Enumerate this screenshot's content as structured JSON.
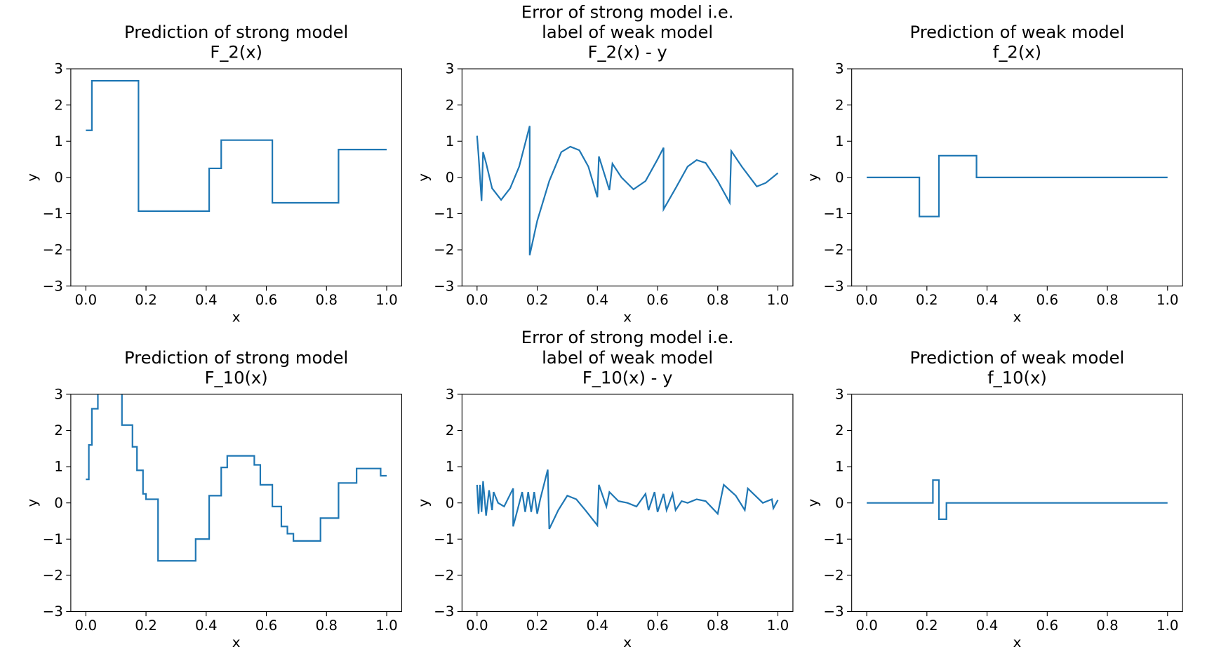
{
  "chart_data": [
    {
      "type": "line",
      "title": [
        "Prediction of strong model",
        "F_2(x)"
      ],
      "xlabel": "x",
      "ylabel": "y",
      "color": "#1f77b4",
      "xlim": [
        -0.05,
        1.05
      ],
      "ylim": [
        -3,
        3
      ],
      "xticks": [
        {
          "value": 0,
          "label": "0.0"
        },
        {
          "value": 0.2,
          "label": "0.2"
        },
        {
          "value": 0.4,
          "label": "0.4"
        },
        {
          "value": 0.6,
          "label": "0.6"
        },
        {
          "value": 0.8,
          "label": "0.8"
        },
        {
          "value": 1,
          "label": "1.0"
        }
      ],
      "yticks": [
        {
          "value": -3,
          "label": "−3"
        },
        {
          "value": -2,
          "label": "−2"
        },
        {
          "value": -1,
          "label": "−1"
        },
        0,
        1,
        2,
        3
      ],
      "x": [
        0,
        0.02,
        0.02,
        0.175,
        0.175,
        0.41,
        0.41,
        0.45,
        0.45,
        0.62,
        0.62,
        0.84,
        0.84,
        1.0
      ],
      "values": [
        1.3,
        1.3,
        2.67,
        2.67,
        -0.93,
        -0.93,
        0.25,
        0.25,
        1.03,
        1.03,
        -0.7,
        -0.7,
        0.77,
        0.77
      ]
    },
    {
      "type": "line",
      "title": [
        "Error of strong model i.e.",
        "label of weak model",
        "F_2(x) - y"
      ],
      "xlabel": "x",
      "ylabel": "y",
      "color": "#1f77b4",
      "xlim": [
        -0.05,
        1.05
      ],
      "ylim": [
        -3,
        3
      ],
      "xticks": [
        {
          "value": 0,
          "label": "0.0"
        },
        {
          "value": 0.2,
          "label": "0.2"
        },
        {
          "value": 0.4,
          "label": "0.4"
        },
        {
          "value": 0.6,
          "label": "0.6"
        },
        {
          "value": 0.8,
          "label": "0.8"
        },
        {
          "value": 1,
          "label": "1.0"
        }
      ],
      "yticks": [
        {
          "value": -3,
          "label": "−3"
        },
        {
          "value": -2,
          "label": "−2"
        },
        {
          "value": -1,
          "label": "−1"
        },
        0,
        1,
        2,
        3
      ],
      "x": [
        0,
        0.005,
        0.015,
        0.02,
        0.03,
        0.05,
        0.08,
        0.11,
        0.14,
        0.175,
        0.175,
        0.2,
        0.24,
        0.28,
        0.31,
        0.34,
        0.37,
        0.4,
        0.405,
        0.44,
        0.45,
        0.48,
        0.52,
        0.56,
        0.6,
        0.62,
        0.62,
        0.66,
        0.7,
        0.73,
        0.76,
        0.8,
        0.84,
        0.845,
        0.88,
        0.93,
        0.96,
        1.0
      ],
      "values": [
        1.15,
        0.6,
        -0.65,
        0.7,
        0.4,
        -0.3,
        -0.62,
        -0.3,
        0.3,
        1.42,
        -2.15,
        -1.2,
        -0.1,
        0.7,
        0.85,
        0.75,
        0.3,
        -0.55,
        0.58,
        -0.35,
        0.38,
        0.0,
        -0.33,
        -0.1,
        0.5,
        0.82,
        -0.88,
        -0.3,
        0.3,
        0.48,
        0.4,
        -0.1,
        -0.7,
        0.73,
        0.3,
        -0.25,
        -0.15,
        0.12
      ]
    },
    {
      "type": "line",
      "title": [
        "Prediction of weak model",
        "f_2(x)"
      ],
      "xlabel": "x",
      "ylabel": "y",
      "color": "#1f77b4",
      "xlim": [
        -0.05,
        1.05
      ],
      "ylim": [
        -3,
        3
      ],
      "xticks": [
        {
          "value": 0,
          "label": "0.0"
        },
        {
          "value": 0.2,
          "label": "0.2"
        },
        {
          "value": 0.4,
          "label": "0.4"
        },
        {
          "value": 0.6,
          "label": "0.6"
        },
        {
          "value": 0.8,
          "label": "0.8"
        },
        {
          "value": 1,
          "label": "1.0"
        }
      ],
      "yticks": [
        {
          "value": -3,
          "label": "−3"
        },
        {
          "value": -2,
          "label": "−2"
        },
        {
          "value": -1,
          "label": "−1"
        },
        0,
        1,
        2,
        3
      ],
      "x": [
        0,
        0.175,
        0.175,
        0.24,
        0.24,
        0.365,
        0.365,
        1.0
      ],
      "values": [
        0,
        0,
        -1.08,
        -1.08,
        0.6,
        0.6,
        0,
        0
      ]
    },
    {
      "type": "line",
      "title": [
        "Prediction of strong model",
        "F_10(x)"
      ],
      "xlabel": "x",
      "ylabel": "y",
      "color": "#1f77b4",
      "xlim": [
        -0.05,
        1.05
      ],
      "ylim": [
        -3,
        3
      ],
      "xticks": [
        {
          "value": 0,
          "label": "0.0"
        },
        {
          "value": 0.2,
          "label": "0.2"
        },
        {
          "value": 0.4,
          "label": "0.4"
        },
        {
          "value": 0.6,
          "label": "0.6"
        },
        {
          "value": 0.8,
          "label": "0.8"
        },
        {
          "value": 1,
          "label": "1.0"
        }
      ],
      "yticks": [
        {
          "value": -3,
          "label": "−3"
        },
        {
          "value": -2,
          "label": "−2"
        },
        {
          "value": -1,
          "label": "−1"
        },
        0,
        1,
        2,
        3
      ],
      "x": [
        0,
        0.01,
        0.01,
        0.02,
        0.02,
        0.04,
        0.04,
        0.12,
        0.12,
        0.155,
        0.155,
        0.17,
        0.17,
        0.19,
        0.19,
        0.2,
        0.2,
        0.24,
        0.24,
        0.365,
        0.365,
        0.41,
        0.41,
        0.45,
        0.45,
        0.47,
        0.47,
        0.56,
        0.56,
        0.58,
        0.58,
        0.62,
        0.62,
        0.65,
        0.65,
        0.67,
        0.67,
        0.69,
        0.69,
        0.78,
        0.78,
        0.84,
        0.84,
        0.9,
        0.9,
        0.98,
        0.98,
        1.0
      ],
      "values": [
        0.65,
        0.65,
        1.6,
        1.6,
        2.6,
        2.6,
        3.3,
        3.3,
        2.15,
        2.15,
        1.55,
        1.55,
        0.9,
        0.9,
        0.25,
        0.25,
        0.1,
        0.1,
        -1.6,
        -1.6,
        -1.0,
        -1.0,
        0.2,
        0.2,
        0.98,
        0.98,
        1.3,
        1.3,
        1.05,
        1.05,
        0.5,
        0.5,
        -0.1,
        -0.1,
        -0.65,
        -0.65,
        -0.85,
        -0.85,
        -1.05,
        -1.05,
        -0.42,
        -0.42,
        0.55,
        0.55,
        0.95,
        0.95,
        0.75,
        0.75
      ]
    },
    {
      "type": "line",
      "title": [
        "Error of strong model i.e.",
        "label of weak model",
        "F_10(x) - y"
      ],
      "xlabel": "x",
      "ylabel": "y",
      "color": "#1f77b4",
      "xlim": [
        -0.05,
        1.05
      ],
      "ylim": [
        -3,
        3
      ],
      "xticks": [
        {
          "value": 0,
          "label": "0.0"
        },
        {
          "value": 0.2,
          "label": "0.2"
        },
        {
          "value": 0.4,
          "label": "0.4"
        },
        {
          "value": 0.6,
          "label": "0.6"
        },
        {
          "value": 0.8,
          "label": "0.8"
        },
        {
          "value": 1,
          "label": "1.0"
        }
      ],
      "yticks": [
        {
          "value": -3,
          "label": "−3"
        },
        {
          "value": -2,
          "label": "−2"
        },
        {
          "value": -1,
          "label": "−1"
        },
        0,
        1,
        2,
        3
      ],
      "x": [
        0,
        0.005,
        0.01,
        0.015,
        0.02,
        0.03,
        0.04,
        0.05,
        0.055,
        0.07,
        0.09,
        0.12,
        0.12,
        0.15,
        0.16,
        0.17,
        0.18,
        0.19,
        0.2,
        0.21,
        0.235,
        0.24,
        0.27,
        0.3,
        0.33,
        0.36,
        0.4,
        0.405,
        0.43,
        0.44,
        0.47,
        0.5,
        0.53,
        0.56,
        0.57,
        0.59,
        0.6,
        0.62,
        0.63,
        0.65,
        0.66,
        0.68,
        0.7,
        0.73,
        0.76,
        0.8,
        0.82,
        0.86,
        0.89,
        0.9,
        0.95,
        0.98,
        0.985,
        1.0
      ],
      "values": [
        0.5,
        -0.3,
        0.5,
        -0.25,
        0.6,
        -0.35,
        0.35,
        -0.2,
        0.3,
        0.0,
        -0.1,
        0.4,
        -0.65,
        0.3,
        -0.25,
        0.3,
        -0.25,
        0.3,
        -0.3,
        0.1,
        0.92,
        -0.72,
        -0.2,
        0.2,
        0.1,
        -0.2,
        -0.62,
        0.5,
        -0.1,
        0.3,
        0.05,
        0.0,
        -0.1,
        0.25,
        -0.2,
        0.3,
        -0.25,
        0.25,
        -0.2,
        0.25,
        -0.2,
        0.05,
        0.0,
        0.1,
        0.05,
        -0.3,
        0.5,
        0.2,
        -0.2,
        0.4,
        0.0,
        0.1,
        -0.15,
        0.08
      ]
    },
    {
      "type": "line",
      "title": [
        "Prediction of weak model",
        "f_10(x)"
      ],
      "xlabel": "x",
      "ylabel": "y",
      "color": "#1f77b4",
      "xlim": [
        -0.05,
        1.05
      ],
      "ylim": [
        -3,
        3
      ],
      "xticks": [
        {
          "value": 0,
          "label": "0.0"
        },
        {
          "value": 0.2,
          "label": "0.2"
        },
        {
          "value": 0.4,
          "label": "0.4"
        },
        {
          "value": 0.6,
          "label": "0.6"
        },
        {
          "value": 0.8,
          "label": "0.8"
        },
        {
          "value": 1,
          "label": "1.0"
        }
      ],
      "yticks": [
        {
          "value": -3,
          "label": "−3"
        },
        {
          "value": -2,
          "label": "−2"
        },
        {
          "value": -1,
          "label": "−1"
        },
        0,
        1,
        2,
        3
      ],
      "x": [
        0,
        0.22,
        0.22,
        0.24,
        0.24,
        0.265,
        0.265,
        1.0
      ],
      "values": [
        0,
        0,
        0.63,
        0.63,
        -0.45,
        -0.45,
        0,
        0
      ]
    }
  ]
}
